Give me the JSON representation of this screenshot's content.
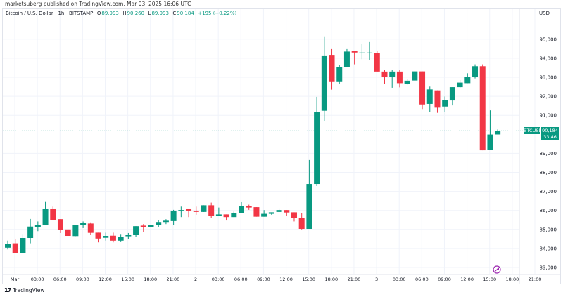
{
  "header": {
    "published": "marketsuberg published on TradingView.com, Mar 03, 2025 16:06 UTC",
    "symbol_desc": "Bitcoin / U.S. Dollar · 1h · BITSTAMP",
    "o_label": "O",
    "o_value": "89,993",
    "h_label": "H",
    "h_value": "90,260",
    "l_label": "L",
    "l_value": "89,993",
    "c_label": "C",
    "c_value": "90,184",
    "change": "+195 (+0.22%)"
  },
  "price_tag": {
    "symbol": "BTCUSD",
    "price": "90,184",
    "countdown": "33:46"
  },
  "brand": {
    "name": "TradingView"
  },
  "colors": {
    "up": "#089981",
    "down": "#f23645",
    "event_icon": "#9c27b0"
  },
  "event_icon": "event-marker-icon",
  "chart_data": {
    "type": "candlestick",
    "interval": "1h",
    "currency": "USD",
    "ylim": [
      82800,
      95600
    ],
    "y_ticks": [
      95000,
      94000,
      93000,
      92000,
      91000,
      89000,
      88000,
      87000,
      86000,
      85000,
      84000,
      83000
    ],
    "y_tick_labels": [
      "95,000",
      "94,000",
      "93,000",
      "92,000",
      "91,000",
      "89,000",
      "88,000",
      "87,000",
      "86,000",
      "85,000",
      "84,000",
      "83,000"
    ],
    "x_tick_labels": [
      "Mar",
      "03:00",
      "06:00",
      "09:00",
      "12:00",
      "15:00",
      "18:00",
      "21:00",
      "2",
      "03:00",
      "06:00",
      "09:00",
      "12:00",
      "15:00",
      "18:00",
      "21:00",
      "3",
      "03:00",
      "06:00",
      "09:00",
      "12:00",
      "15:00",
      "18:00",
      "21:00"
    ],
    "grid": true,
    "last_price": 90184,
    "candles_ohlc": [
      [
        84040,
        84410,
        83950,
        84240
      ],
      [
        84270,
        84510,
        83760,
        83760
      ],
      [
        83760,
        84760,
        83760,
        84550
      ],
      [
        84550,
        85550,
        84270,
        85150
      ],
      [
        85130,
        85420,
        84910,
        85250
      ],
      [
        85250,
        86480,
        85250,
        86100
      ],
      [
        86100,
        86200,
        85500,
        85500
      ],
      [
        85540,
        85540,
        84810,
        84980
      ],
      [
        85000,
        85000,
        84660,
        84660
      ],
      [
        84650,
        85240,
        84650,
        85240
      ],
      [
        85230,
        85420,
        85070,
        85330
      ],
      [
        85310,
        85370,
        84730,
        84820
      ],
      [
        84830,
        84830,
        84320,
        84520
      ],
      [
        84560,
        84830,
        84410,
        84660
      ],
      [
        84670,
        84830,
        84320,
        84410
      ],
      [
        84410,
        84760,
        84370,
        84620
      ],
      [
        84640,
        84810,
        84490,
        84710
      ],
      [
        84700,
        85170,
        84600,
        85170
      ],
      [
        85200,
        85280,
        84850,
        85110
      ],
      [
        85110,
        85240,
        85000,
        85240
      ],
      [
        85230,
        85480,
        85130,
        85390
      ],
      [
        85390,
        85540,
        85280,
        85460
      ],
      [
        85440,
        86030,
        85250,
        85990
      ],
      [
        85980,
        86200,
        85650,
        86020
      ],
      [
        86100,
        86100,
        85650,
        85990
      ],
      [
        85990,
        86200,
        85770,
        85920
      ],
      [
        85920,
        86270,
        85920,
        86270
      ],
      [
        86270,
        86410,
        85590,
        85710
      ],
      [
        85710,
        86150,
        85710,
        85790
      ],
      [
        85790,
        85790,
        85470,
        85650
      ],
      [
        85650,
        85940,
        85650,
        85850
      ],
      [
        85850,
        86470,
        85850,
        86210
      ],
      [
        86210,
        86300,
        86030,
        86150
      ],
      [
        86170,
        86170,
        85670,
        85670
      ],
      [
        85670,
        86020,
        85670,
        85820
      ],
      [
        85820,
        85900,
        85770,
        85900
      ],
      [
        85920,
        86110,
        85920,
        86020
      ],
      [
        86020,
        86020,
        85710,
        85890
      ],
      [
        85900,
        85900,
        85420,
        85620
      ],
      [
        85620,
        85870,
        85000,
        85030
      ],
      [
        85030,
        88650,
        85030,
        87390
      ],
      [
        87390,
        91970,
        87280,
        91190
      ],
      [
        91240,
        95150,
        90690,
        94110
      ],
      [
        94140,
        94480,
        92350,
        92750
      ],
      [
        92750,
        93630,
        92630,
        93530
      ],
      [
        93530,
        94480,
        93530,
        94350
      ],
      [
        94370,
        94370,
        93680,
        94300
      ],
      [
        94260,
        94750,
        93950,
        94300
      ],
      [
        94280,
        94850,
        93890,
        94300
      ],
      [
        94280,
        94400,
        93300,
        93300
      ],
      [
        93300,
        93370,
        92660,
        93030
      ],
      [
        93030,
        93370,
        92450,
        93300
      ],
      [
        93300,
        93370,
        92470,
        92690
      ],
      [
        92660,
        92920,
        92610,
        92820
      ],
      [
        92830,
        93310,
        92830,
        93310
      ],
      [
        93310,
        93310,
        91330,
        91570
      ],
      [
        91600,
        92510,
        91180,
        92360
      ],
      [
        92310,
        92310,
        91130,
        91400
      ],
      [
        91460,
        91990,
        91190,
        91790
      ],
      [
        91780,
        92480,
        91520,
        92480
      ],
      [
        92480,
        92850,
        92410,
        92720
      ],
      [
        92690,
        93210,
        92690,
        93000
      ],
      [
        93000,
        93680,
        92940,
        93580
      ],
      [
        93580,
        93680,
        89160,
        89160
      ],
      [
        89190,
        91260,
        89190,
        89990
      ],
      [
        89993,
        90260,
        89993,
        90184
      ]
    ]
  }
}
